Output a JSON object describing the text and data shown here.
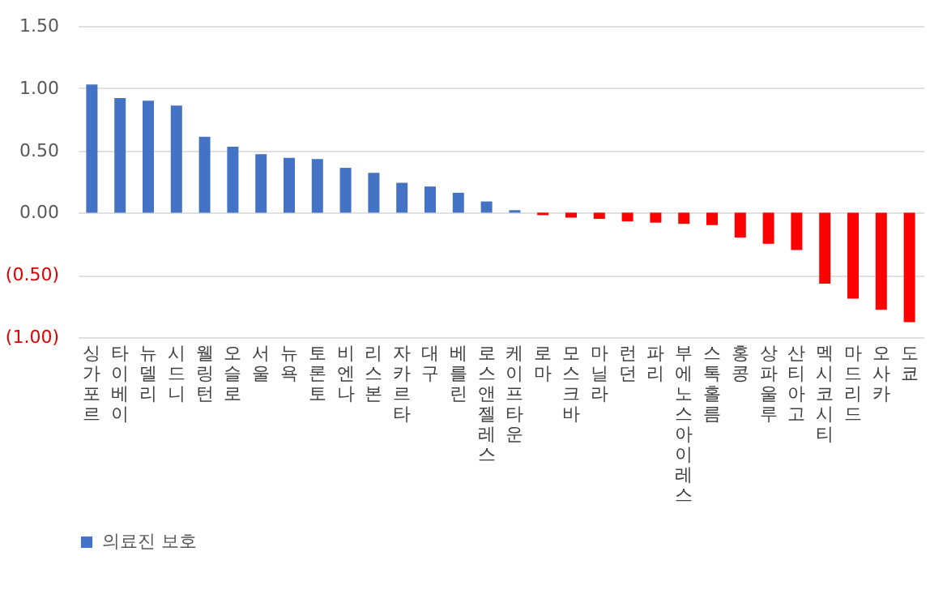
{
  "chart_data": {
    "type": "bar",
    "categories": [
      "싱가포르",
      "타이베이",
      "뉴델리",
      "시드니",
      "웰링턴",
      "오슬로",
      "서울",
      "뉴욕",
      "토론토",
      "비엔나",
      "리스본",
      "자카르타",
      "대구",
      "베를린",
      "로스 앤젤레스",
      "케이프 타운",
      "로마",
      "모스크바",
      "마닐라",
      "런던",
      "파리",
      "부에노스 아이레스",
      "스톡홀름",
      "홍콩",
      "상파울루",
      "산티아고",
      "멕시코 시티",
      "마드리드",
      "오사카",
      "도쿄"
    ],
    "series": [
      {
        "name": "의료진 보호",
        "color": "#4472c4",
        "values": [
          1.03,
          0.92,
          0.9,
          0.86,
          0.61,
          0.53,
          0.47,
          0.44,
          0.43,
          0.36,
          0.32,
          0.24,
          0.21,
          0.16,
          0.09,
          0.02,
          -0.02,
          -0.04,
          -0.05,
          -0.07,
          -0.08,
          -0.09,
          -0.1,
          -0.2,
          -0.25,
          -0.3,
          -0.57,
          -0.69,
          -0.78,
          -0.88
        ],
        "colors": [
          "#4472c4",
          "#4472c4",
          "#4472c4",
          "#4472c4",
          "#4472c4",
          "#4472c4",
          "#4472c4",
          "#4472c4",
          "#4472c4",
          "#4472c4",
          "#4472c4",
          "#4472c4",
          "#4472c4",
          "#4472c4",
          "#4472c4",
          "#4472c4",
          "#ff0000",
          "#ff0000",
          "#ff0000",
          "#ff0000",
          "#ff0000",
          "#ff0000",
          "#ff0000",
          "#ff0000",
          "#ff0000",
          "#ff0000",
          "#ff0000",
          "#ff0000",
          "#ff0000",
          "#ff0000"
        ]
      }
    ],
    "ylim": [
      -1,
      1.5
    ],
    "yticks": [
      {
        "value": -1,
        "label": "(1.00)"
      },
      {
        "value": -0.5,
        "label": "(0.50)"
      },
      {
        "value": 0,
        "label": "0.00"
      },
      {
        "value": 0.5,
        "label": "0.50"
      },
      {
        "value": 1,
        "label": "1.00"
      },
      {
        "value": 1.5,
        "label": "1.50"
      }
    ],
    "grid": "y",
    "legend": "bottom"
  }
}
